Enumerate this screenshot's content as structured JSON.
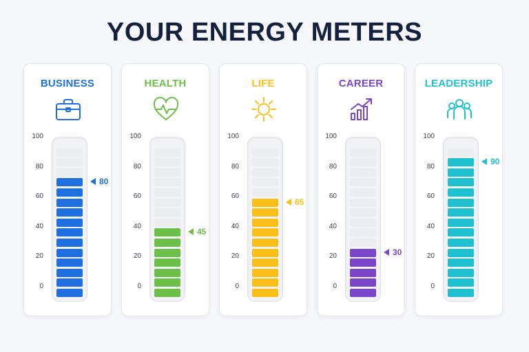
{
  "title": "YOUR ENERGY METERS",
  "chart_data": {
    "type": "bar",
    "ylim": [
      0,
      100
    ],
    "ticks": [
      "100",
      "80",
      "60",
      "40",
      "20",
      "0"
    ],
    "meters": [
      {
        "label": "BUSINESS",
        "value": 80,
        "value_label": "80",
        "color": "#1f6fe0",
        "icon": "briefcase-icon"
      },
      {
        "label": "HEALTH",
        "value": 45,
        "value_label": "45",
        "color": "#6cc04a",
        "icon": "heart-pulse-icon"
      },
      {
        "label": "LIFE",
        "value": 65,
        "value_label": "65",
        "color": "#fbbf1a",
        "icon": "sun-icon"
      },
      {
        "label": "CAREER",
        "value": 30,
        "value_label": "30",
        "color": "#7a45c8",
        "icon": "growth-chart-icon"
      },
      {
        "label": "LEADERSHIP",
        "value": 90,
        "value_label": "90",
        "color": "#1fc0d0",
        "icon": "team-icon"
      }
    ]
  }
}
